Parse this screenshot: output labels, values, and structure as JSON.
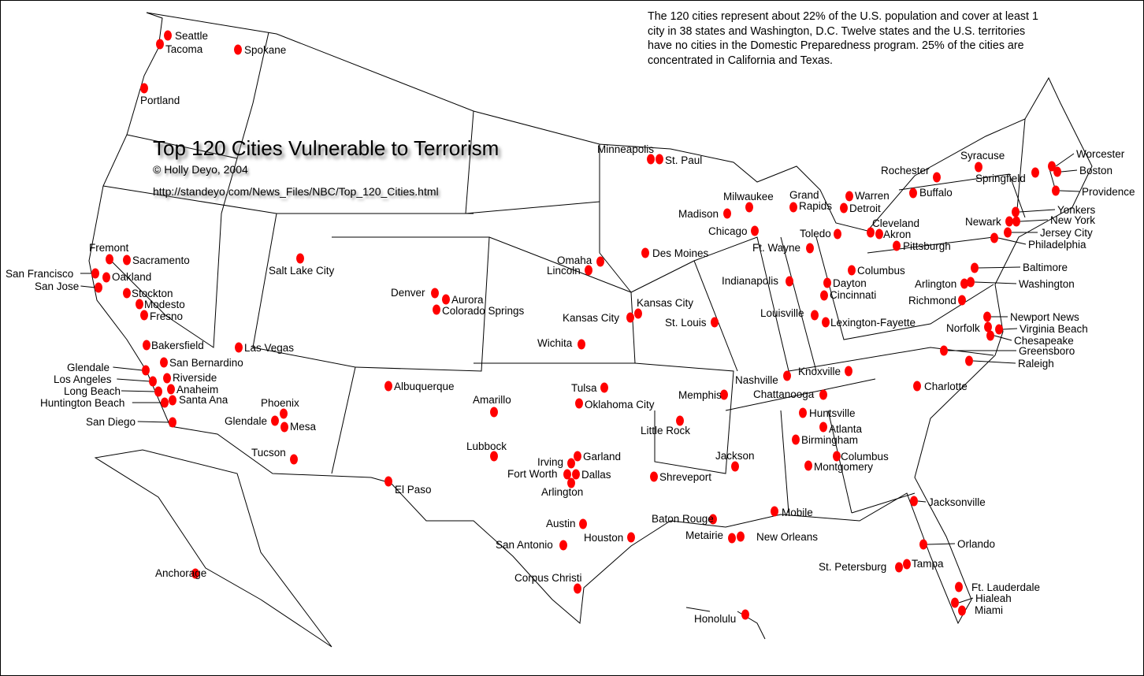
{
  "map": {
    "title": "Top 120 Cities Vulnerable to Terrorism",
    "credit": "© Holly Deyo, 2004",
    "url": "http://standeyo.com/News_Files/NBC/Top_120_Cities.html",
    "note": "The 120 cities represent about 22% of the U.S. population and cover at least 1 city in 38 states and Washington, D.C. Twelve states and the U.S. territories have no cities in the Domestic Preparedness program. 25% of the cities are concentrated in California and Texas.",
    "dot_color": "#ff0000",
    "border_color": "#000000"
  },
  "cities": [
    "Seattle",
    "Tacoma",
    "Spokane",
    "Portland",
    "Minneapolis",
    "St. Paul",
    "Milwaukee",
    "Madison",
    "Chicago",
    "Grand Rapids",
    "Warren",
    "Detroit",
    "Toledo",
    "Cleveland",
    "Akron",
    "Ft. Wayne",
    "Pittsburgh",
    "Columbus",
    "Indianapolis",
    "Dayton",
    "Cincinnati",
    "Louisville",
    "Lexington-Fayette",
    "Rochester",
    "Buffalo",
    "Syracuse",
    "Springfield",
    "Worcester",
    "Boston",
    "Providence",
    "Yonkers",
    "New York",
    "Newark",
    "Jersey City",
    "Philadelphia",
    "Baltimore",
    "Washington",
    "Arlington",
    "Richmond",
    "Newport News",
    "Norfolk",
    "Virginia Beach",
    "Chesapeake",
    "Greensboro",
    "Raleigh",
    "Charlotte",
    "Knoxville",
    "Nashville",
    "Chattanooga",
    "Huntsville",
    "Atlanta",
    "Birmingham",
    "Columbus",
    "Montgomery",
    "Memphis",
    "Jackson",
    "Little Rock",
    "Shreveport",
    "Baton Rouge",
    "Metairie",
    "New Orleans",
    "Mobile",
    "Jacksonville",
    "Orlando",
    "Tampa",
    "St. Petersburg",
    "Ft. Lauderdale",
    "Hialeah",
    "Miami",
    "Honolulu",
    "Anchorage",
    "Omaha",
    "Lincoln",
    "Des Moines",
    "Kansas City",
    "Kansas City",
    "St. Louis",
    "Wichita",
    "Tulsa",
    "Oklahoma City",
    "Amarillo",
    "Lubbock",
    "Irving",
    "Garland",
    "Fort Worth",
    "Dallas",
    "Arlington",
    "Austin",
    "Houston",
    "San Antonio",
    "Corpus Christi",
    "El Paso",
    "Albuquerque",
    "Denver",
    "Aurora",
    "Colorado Springs",
    "Salt Lake City",
    "Las Vegas",
    "Phoenix",
    "Glendale",
    "Mesa",
    "Tucson",
    "Fremont",
    "Sacramento",
    "San Francisco",
    "Oakland",
    "San Jose",
    "Stockton",
    "Modesto",
    "Fresno",
    "Bakersfield",
    "San Bernardino",
    "Glendale",
    "Riverside",
    "Los Angeles",
    "Anaheim",
    "Long Beach",
    "Santa Ana",
    "Huntington Beach",
    "San Diego"
  ]
}
